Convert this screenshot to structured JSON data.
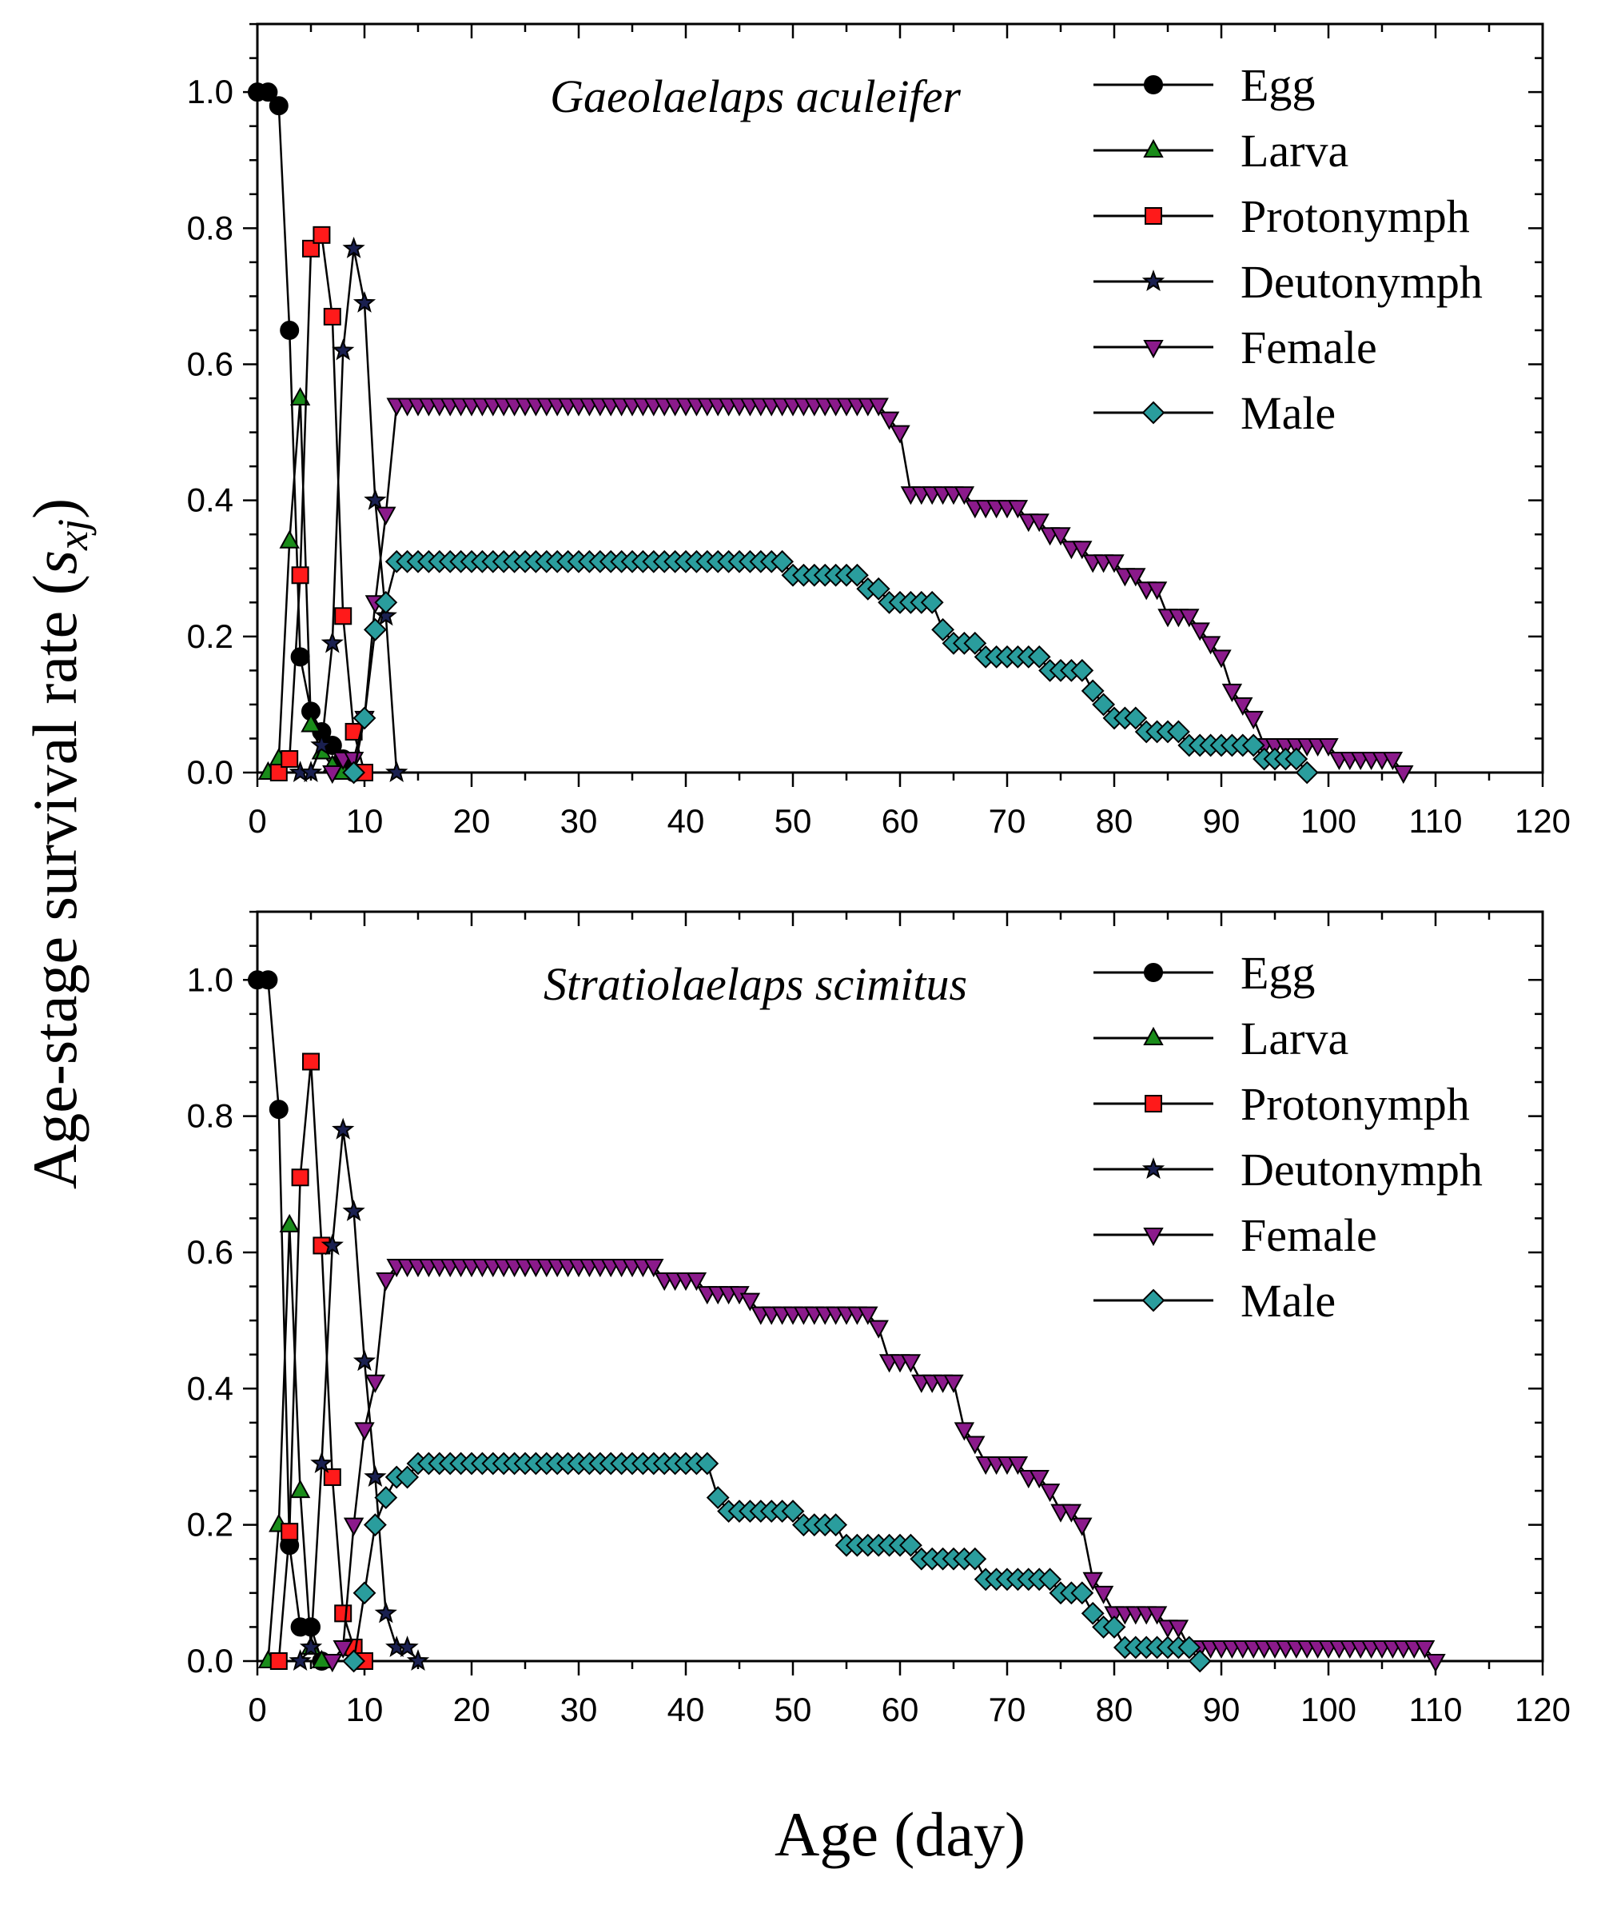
{
  "chart_data": {
    "type": "line",
    "xlabel": "Age (day)",
    "ylabel": "Age-stage survival rate",
    "ylabel_symbol": "s",
    "ylabel_subscript": "xj",
    "xlim": [
      0,
      120
    ],
    "ylim": [
      0,
      1.1
    ],
    "x_ticks": [
      "0",
      "10",
      "20",
      "30",
      "40",
      "50",
      "60",
      "70",
      "80",
      "90",
      "100",
      "110",
      "120"
    ],
    "y_ticks": [
      "0.0",
      "0.2",
      "0.4",
      "0.6",
      "0.8",
      "1.0"
    ],
    "stages": [
      {
        "name": "Egg",
        "marker": "circle",
        "color": "#000000"
      },
      {
        "name": "Larva",
        "marker": "triangle-up",
        "color": "#1a8c1a"
      },
      {
        "name": "Protonymph",
        "marker": "square",
        "color": "#ff1a1a"
      },
      {
        "name": "Deutonymph",
        "marker": "star",
        "color": "#1a2050"
      },
      {
        "name": "Female",
        "marker": "triangle-down",
        "color": "#8b1a8b"
      },
      {
        "name": "Male",
        "marker": "diamond",
        "color": "#2a9d9d"
      }
    ],
    "panels": [
      {
        "title": "Gaeolaelaps aculeifer",
        "series": [
          {
            "name": "Egg",
            "points": [
              [
                0,
                1.0
              ],
              [
                1,
                1.0
              ],
              [
                2,
                0.98
              ],
              [
                3,
                0.65
              ],
              [
                4,
                0.17
              ],
              [
                5,
                0.09
              ],
              [
                6,
                0.06
              ],
              [
                7,
                0.04
              ],
              [
                8,
                0.02
              ],
              [
                9,
                0.0
              ]
            ]
          },
          {
            "name": "Larva",
            "points": [
              [
                1,
                0.0
              ],
              [
                2,
                0.02
              ],
              [
                3,
                0.34
              ],
              [
                4,
                0.55
              ],
              [
                5,
                0.07
              ],
              [
                6,
                0.03
              ],
              [
                7,
                0.01
              ],
              [
                8,
                0.0
              ]
            ]
          },
          {
            "name": "Protonymph",
            "points": [
              [
                2,
                0.0
              ],
              [
                3,
                0.02
              ],
              [
                4,
                0.29
              ],
              [
                5,
                0.77
              ],
              [
                6,
                0.79
              ],
              [
                7,
                0.67
              ],
              [
                8,
                0.23
              ],
              [
                9,
                0.06
              ],
              [
                10,
                0.0
              ]
            ]
          },
          {
            "name": "Deutonymph",
            "points": [
              [
                4,
                0.0
              ],
              [
                5,
                0.0
              ],
              [
                6,
                0.04
              ],
              [
                7,
                0.19
              ],
              [
                8,
                0.62
              ],
              [
                9,
                0.77
              ],
              [
                10,
                0.69
              ],
              [
                11,
                0.4
              ],
              [
                12,
                0.23
              ],
              [
                13,
                0.0
              ]
            ]
          },
          {
            "name": "Female",
            "steps": [
              [
                7,
                0.0
              ],
              [
                8,
                0.02
              ],
              [
                9,
                0.02
              ],
              [
                10,
                0.08
              ],
              [
                11,
                0.25
              ],
              [
                12,
                0.38
              ],
              [
                13,
                0.54
              ],
              [
                58,
                0.54
              ],
              [
                59,
                0.52
              ],
              [
                60,
                0.5
              ],
              [
                61,
                0.41
              ],
              [
                66,
                0.41
              ],
              [
                67,
                0.39
              ],
              [
                71,
                0.39
              ],
              [
                72,
                0.37
              ],
              [
                73,
                0.37
              ],
              [
                74,
                0.35
              ],
              [
                75,
                0.35
              ],
              [
                76,
                0.33
              ],
              [
                77,
                0.33
              ],
              [
                78,
                0.31
              ],
              [
                80,
                0.31
              ],
              [
                81,
                0.29
              ],
              [
                82,
                0.29
              ],
              [
                83,
                0.27
              ],
              [
                84,
                0.27
              ],
              [
                85,
                0.23
              ],
              [
                87,
                0.23
              ],
              [
                88,
                0.21
              ],
              [
                89,
                0.19
              ],
              [
                90,
                0.17
              ],
              [
                91,
                0.12
              ],
              [
                92,
                0.1
              ],
              [
                93,
                0.08
              ],
              [
                94,
                0.04
              ],
              [
                100,
                0.04
              ],
              [
                101,
                0.02
              ],
              [
                106,
                0.02
              ],
              [
                107,
                0.0
              ]
            ]
          },
          {
            "name": "Male",
            "steps": [
              [
                9,
                0.0
              ],
              [
                10,
                0.08
              ],
              [
                11,
                0.21
              ],
              [
                12,
                0.25
              ],
              [
                13,
                0.31
              ],
              [
                49,
                0.31
              ],
              [
                50,
                0.29
              ],
              [
                56,
                0.29
              ],
              [
                57,
                0.27
              ],
              [
                58,
                0.27
              ],
              [
                59,
                0.25
              ],
              [
                63,
                0.25
              ],
              [
                64,
                0.21
              ],
              [
                65,
                0.19
              ],
              [
                67,
                0.19
              ],
              [
                68,
                0.17
              ],
              [
                69,
                0.17
              ],
              [
                70,
                0.17
              ],
              [
                73,
                0.17
              ],
              [
                74,
                0.15
              ],
              [
                77,
                0.15
              ],
              [
                78,
                0.12
              ],
              [
                79,
                0.1
              ],
              [
                80,
                0.08
              ],
              [
                81,
                0.08
              ],
              [
                82,
                0.08
              ],
              [
                83,
                0.06
              ],
              [
                86,
                0.06
              ],
              [
                87,
                0.04
              ],
              [
                93,
                0.04
              ],
              [
                94,
                0.02
              ],
              [
                97,
                0.02
              ],
              [
                98,
                0.0
              ]
            ]
          }
        ]
      },
      {
        "title": "Stratiolaelaps scimitus",
        "series": [
          {
            "name": "Egg",
            "points": [
              [
                0,
                1.0
              ],
              [
                1,
                1.0
              ],
              [
                2,
                0.81
              ],
              [
                3,
                0.17
              ],
              [
                4,
                0.05
              ],
              [
                5,
                0.05
              ],
              [
                6,
                0.0
              ]
            ]
          },
          {
            "name": "Larva",
            "points": [
              [
                1,
                0.0
              ],
              [
                2,
                0.2
              ],
              [
                3,
                0.64
              ],
              [
                4,
                0.25
              ],
              [
                5,
                0.02
              ],
              [
                6,
                0.0
              ]
            ]
          },
          {
            "name": "Protonymph",
            "points": [
              [
                2,
                0.0
              ],
              [
                3,
                0.19
              ],
              [
                4,
                0.71
              ],
              [
                5,
                0.88
              ],
              [
                6,
                0.61
              ],
              [
                7,
                0.27
              ],
              [
                8,
                0.07
              ],
              [
                9,
                0.02
              ],
              [
                10,
                0.0
              ]
            ]
          },
          {
            "name": "Deutonymph",
            "points": [
              [
                4,
                0.0
              ],
              [
                5,
                0.02
              ],
              [
                6,
                0.29
              ],
              [
                7,
                0.61
              ],
              [
                8,
                0.78
              ],
              [
                9,
                0.66
              ],
              [
                10,
                0.44
              ],
              [
                11,
                0.27
              ],
              [
                12,
                0.07
              ],
              [
                13,
                0.02
              ],
              [
                14,
                0.02
              ],
              [
                15,
                0.0
              ]
            ]
          },
          {
            "name": "Female",
            "steps": [
              [
                7,
                0.0
              ],
              [
                8,
                0.02
              ],
              [
                9,
                0.2
              ],
              [
                10,
                0.34
              ],
              [
                11,
                0.41
              ],
              [
                12,
                0.56
              ],
              [
                13,
                0.58
              ],
              [
                37,
                0.58
              ],
              [
                38,
                0.56
              ],
              [
                41,
                0.56
              ],
              [
                42,
                0.54
              ],
              [
                45,
                0.54
              ],
              [
                46,
                0.53
              ],
              [
                47,
                0.51
              ],
              [
                56,
                0.51
              ],
              [
                58,
                0.49
              ],
              [
                59,
                0.44
              ],
              [
                61,
                0.44
              ],
              [
                62,
                0.41
              ],
              [
                65,
                0.41
              ],
              [
                66,
                0.34
              ],
              [
                67,
                0.32
              ],
              [
                68,
                0.29
              ],
              [
                71,
                0.29
              ],
              [
                72,
                0.27
              ],
              [
                73,
                0.27
              ],
              [
                74,
                0.25
              ],
              [
                75,
                0.22
              ],
              [
                76,
                0.22
              ],
              [
                77,
                0.2
              ],
              [
                78,
                0.12
              ],
              [
                79,
                0.1
              ],
              [
                80,
                0.07
              ],
              [
                84,
                0.07
              ],
              [
                85,
                0.05
              ],
              [
                87,
                0.02
              ],
              [
                109,
                0.02
              ],
              [
                110,
                0.0
              ]
            ]
          },
          {
            "name": "Male",
            "steps": [
              [
                9,
                0.0
              ],
              [
                10,
                0.1
              ],
              [
                11,
                0.2
              ],
              [
                12,
                0.24
              ],
              [
                13,
                0.27
              ],
              [
                14,
                0.27
              ],
              [
                15,
                0.29
              ],
              [
                42,
                0.29
              ],
              [
                43,
                0.24
              ],
              [
                44,
                0.22
              ],
              [
                50,
                0.22
              ],
              [
                51,
                0.2
              ],
              [
                54,
                0.2
              ],
              [
                55,
                0.17
              ],
              [
                61,
                0.17
              ],
              [
                62,
                0.15
              ],
              [
                67,
                0.15
              ],
              [
                68,
                0.12
              ],
              [
                74,
                0.12
              ],
              [
                75,
                0.1
              ],
              [
                77,
                0.1
              ],
              [
                78,
                0.07
              ],
              [
                79,
                0.05
              ],
              [
                80,
                0.05
              ],
              [
                81,
                0.02
              ],
              [
                87,
                0.02
              ],
              [
                88,
                0.0
              ]
            ]
          }
        ]
      }
    ]
  }
}
